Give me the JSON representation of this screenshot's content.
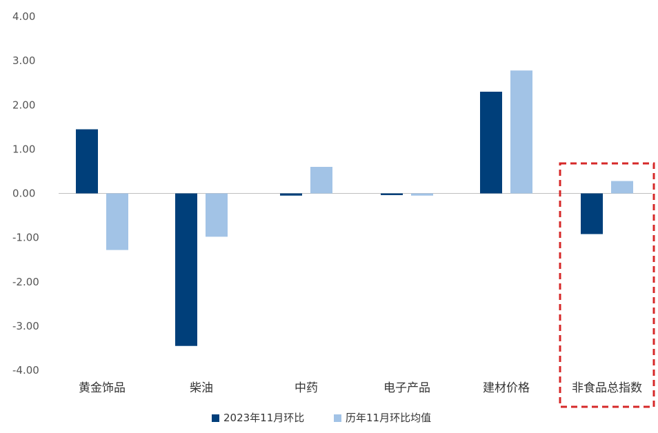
{
  "chart_data": {
    "type": "bar",
    "categories": [
      "黄金饰品",
      "柴油",
      "中药",
      "电子产品",
      "建材价格",
      "非食品总指数"
    ],
    "series": [
      {
        "name": "2023年11月环比",
        "values": [
          1.45,
          -3.45,
          -0.05,
          0.0,
          2.3,
          -0.92
        ],
        "color": "#003f7a"
      },
      {
        "name": "历年11月环比均值",
        "values": [
          -1.28,
          -0.98,
          0.6,
          -0.05,
          2.78,
          0.28
        ],
        "color": "#a2c3e6"
      }
    ],
    "ylim": [
      -4.0,
      4.0
    ],
    "yticks": [
      "4.00",
      "3.00",
      "2.00",
      "1.00",
      "0.00",
      "-1.00",
      "-2.00",
      "-3.00",
      "-4.00"
    ],
    "ytick_values": [
      4,
      3,
      2,
      1,
      0,
      -1,
      -2,
      -3,
      -4
    ],
    "grid": false,
    "legend_position": "bottom-center",
    "highlight_category": "非食品总指数",
    "highlight_color": "#d62828"
  }
}
